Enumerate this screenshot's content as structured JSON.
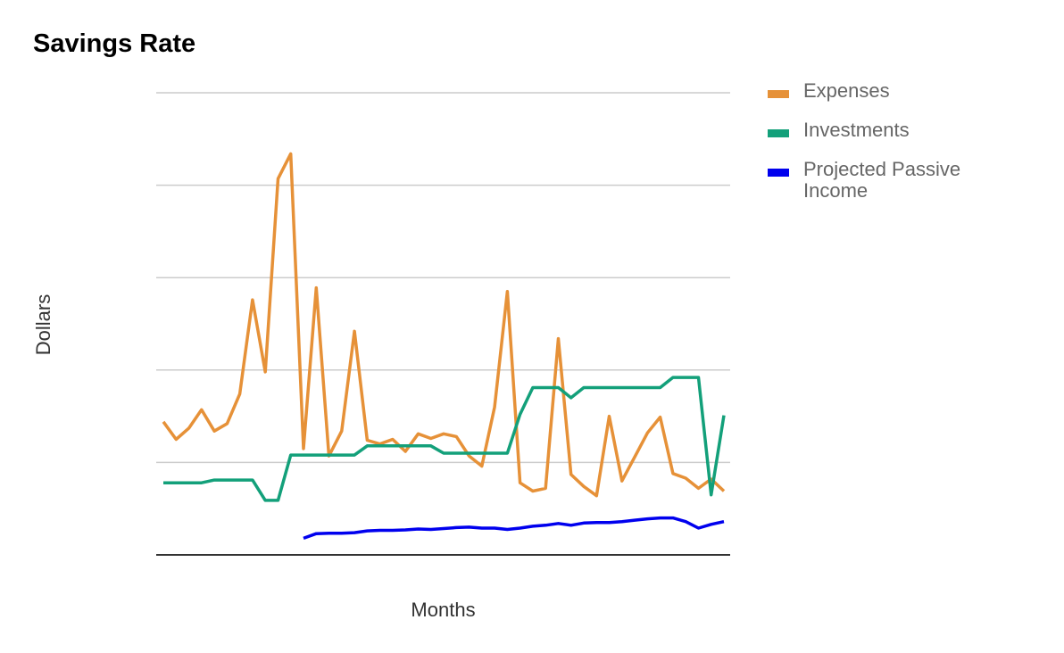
{
  "chart_data": {
    "type": "line",
    "title": "Savings Rate",
    "xlabel": "Months",
    "ylabel": "Dollars",
    "grid": true,
    "legend_position": "right",
    "y_tick_labels_shown": false,
    "x_tick_labels_shown": false,
    "ylim": [
      0,
      5
    ],
    "x": [
      1,
      2,
      3,
      4,
      5,
      6,
      7,
      8,
      9,
      10,
      11,
      12,
      13,
      14,
      15,
      16,
      17,
      18,
      19,
      20,
      21,
      22,
      23,
      24,
      25,
      26,
      27,
      28,
      29,
      30,
      31,
      32,
      33,
      34,
      35,
      36,
      37,
      38,
      39,
      40,
      41,
      42,
      43,
      44,
      45
    ],
    "series": [
      {
        "name": "Expenses",
        "color": "#e69138",
        "values": [
          1.44,
          1.25,
          1.37,
          1.57,
          1.34,
          1.42,
          1.74,
          2.76,
          1.98,
          4.07,
          4.34,
          1.15,
          2.89,
          1.07,
          1.34,
          2.42,
          1.24,
          1.2,
          1.25,
          1.12,
          1.31,
          1.26,
          1.31,
          1.28,
          1.07,
          0.96,
          1.6,
          2.85,
          0.78,
          0.69,
          0.72,
          2.34,
          0.87,
          0.74,
          0.64,
          1.5,
          0.8,
          1.06,
          1.32,
          1.49,
          0.88,
          0.83,
          0.72,
          0.82,
          0.69
        ]
      },
      {
        "name": "Investments",
        "color": "#13a07a",
        "values": [
          0.78,
          0.78,
          0.78,
          0.78,
          0.81,
          0.81,
          0.81,
          0.81,
          0.59,
          0.59,
          1.08,
          1.08,
          1.08,
          1.08,
          1.08,
          1.08,
          1.18,
          1.18,
          1.18,
          1.18,
          1.18,
          1.18,
          1.1,
          1.1,
          1.1,
          1.1,
          1.1,
          1.1,
          1.52,
          1.81,
          1.81,
          1.81,
          1.7,
          1.81,
          1.81,
          1.81,
          1.81,
          1.81,
          1.81,
          1.81,
          1.92,
          1.92,
          1.92,
          0.65,
          1.51
        ]
      },
      {
        "name": "Projected Passive Income",
        "color": "#0000ee",
        "values": [
          null,
          null,
          null,
          null,
          null,
          null,
          null,
          null,
          null,
          null,
          null,
          0.18,
          0.23,
          0.235,
          0.235,
          0.24,
          0.26,
          0.265,
          0.265,
          0.27,
          0.28,
          0.275,
          0.285,
          0.295,
          0.3,
          0.29,
          0.29,
          0.275,
          0.29,
          0.31,
          0.32,
          0.34,
          0.32,
          0.345,
          0.35,
          0.35,
          0.36,
          0.375,
          0.39,
          0.4,
          0.4,
          0.36,
          0.29,
          0.33,
          0.36
        ]
      }
    ]
  }
}
